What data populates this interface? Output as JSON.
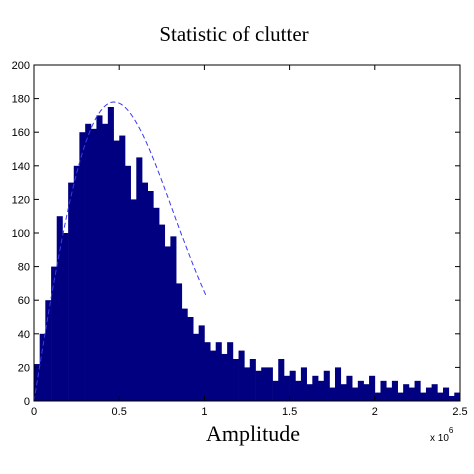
{
  "chart_data": {
    "type": "bar",
    "title": "Statistic of clutter",
    "xlabel": "Amplitude",
    "ylabel": "",
    "x_exponent_label": "x 10",
    "x_exponent_power": "6",
    "xlim": [
      0,
      2.5
    ],
    "ylim": [
      0,
      200
    ],
    "x_ticks": [
      0,
      0.5,
      1,
      1.5,
      2,
      2.5
    ],
    "x_tick_labels": [
      "0",
      "0.5",
      "1",
      "1.5",
      "2",
      "2.5"
    ],
    "y_ticks": [
      0,
      20,
      40,
      60,
      80,
      100,
      120,
      140,
      160,
      180,
      200
    ],
    "y_tick_labels": [
      "0",
      "20",
      "40",
      "60",
      "80",
      "100",
      "120",
      "140",
      "160",
      "180",
      "200"
    ],
    "bin_width": 0.0333,
    "bin_centers": [
      0.017,
      0.05,
      0.083,
      0.117,
      0.15,
      0.183,
      0.217,
      0.25,
      0.283,
      0.317,
      0.35,
      0.383,
      0.417,
      0.45,
      0.483,
      0.517,
      0.55,
      0.583,
      0.617,
      0.65,
      0.683,
      0.717,
      0.75,
      0.783,
      0.817,
      0.85,
      0.883,
      0.917,
      0.95,
      0.983,
      1.017,
      1.05,
      1.083,
      1.117,
      1.15,
      1.183,
      1.217,
      1.25,
      1.283,
      1.317,
      1.35,
      1.383,
      1.417,
      1.45,
      1.483,
      1.517,
      1.55,
      1.583,
      1.617,
      1.65,
      1.683,
      1.717,
      1.75,
      1.783,
      1.817,
      1.85,
      1.883,
      1.917,
      1.95,
      1.983,
      2.017,
      2.05,
      2.083,
      2.117,
      2.15,
      2.183,
      2.217,
      2.25,
      2.283,
      2.317,
      2.35,
      2.383,
      2.417,
      2.45,
      2.483
    ],
    "values": [
      22,
      40,
      60,
      80,
      110,
      100,
      130,
      140,
      160,
      165,
      162,
      170,
      165,
      175,
      155,
      158,
      140,
      120,
      145,
      130,
      125,
      115,
      105,
      92,
      98,
      70,
      55,
      50,
      40,
      45,
      35,
      30,
      35,
      28,
      35,
      25,
      30,
      20,
      25,
      18,
      20,
      20,
      12,
      25,
      15,
      18,
      12,
      20,
      10,
      15,
      12,
      18,
      8,
      20,
      10,
      15,
      8,
      12,
      10,
      15,
      5,
      12,
      8,
      12,
      5,
      10,
      8,
      12,
      5,
      8,
      10,
      5,
      8,
      3,
      5
    ],
    "series": [
      {
        "type": "histogram",
        "color": "#000080"
      },
      {
        "type": "fit-curve",
        "style": "dashed",
        "color": "#3a3af0",
        "peak_x": 0.47,
        "peak_y": 178
      }
    ],
    "grid": false,
    "legend": "none"
  }
}
